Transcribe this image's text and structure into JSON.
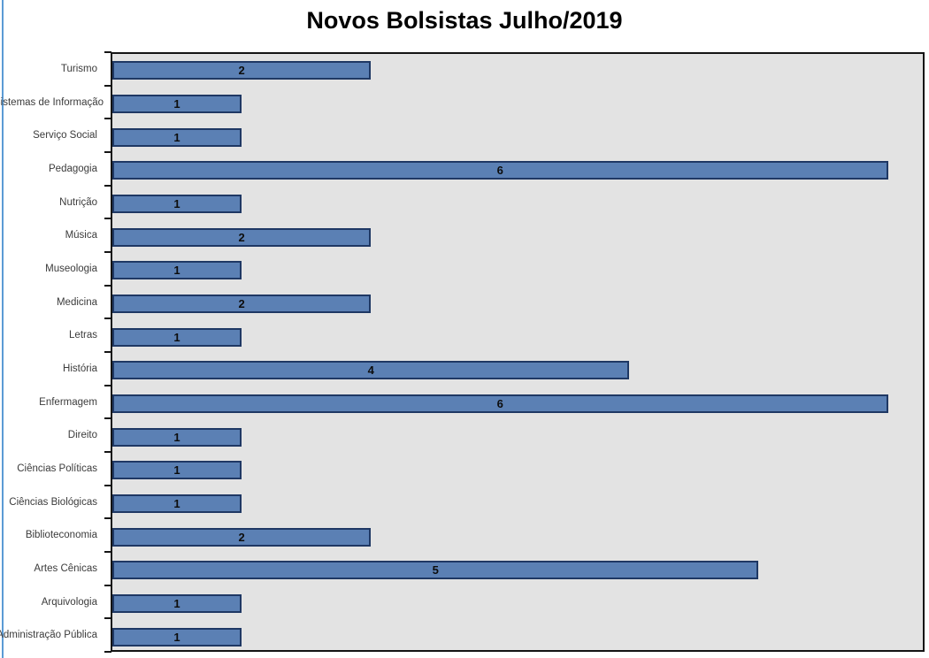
{
  "window": {
    "left_edge_color": "#5B9BD5"
  },
  "chart_data": {
    "type": "bar",
    "orientation": "horizontal",
    "title": "Novos Bolsistas Julho/2019",
    "categories": [
      "Turismo",
      "Sistemas de Informação",
      "Serviço Social",
      "Pedagogia",
      "Nutrição",
      "Música",
      "Museologia",
      "Medicina",
      "Letras",
      "História",
      "Enfermagem",
      "Direito",
      "Ciências Políticas",
      "Ciências Biológicas",
      "Biblioteconomia",
      "Artes Cênicas",
      "Arquivologia",
      "Administração Pública"
    ],
    "values": [
      2,
      1,
      1,
      6,
      1,
      2,
      1,
      2,
      1,
      4,
      6,
      1,
      1,
      1,
      2,
      5,
      1,
      1
    ],
    "xlabel": "",
    "ylabel": "",
    "xlim": [
      0,
      6.27
    ],
    "grid": false,
    "legend": false,
    "data_labels_position": "center",
    "bar_color": "#5B80B4",
    "bar_border_color": "#1F3864",
    "plot_background": "#E3E3E3",
    "plot_border_color": "#141414",
    "title_color": "#000000",
    "category_label_color": "#3b3b3b"
  }
}
